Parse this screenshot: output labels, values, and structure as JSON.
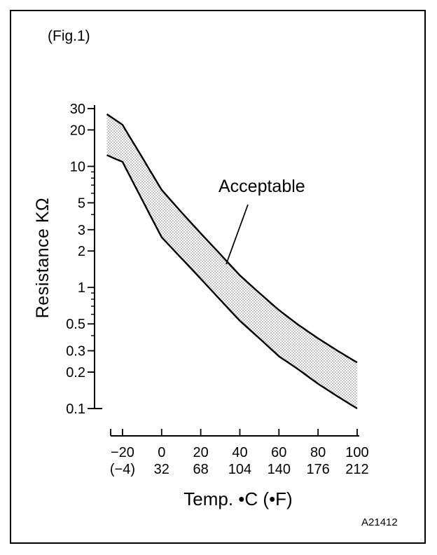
{
  "figure": {
    "fig_label": "(Fig.1)",
    "code": "A21412"
  },
  "chart_data": {
    "type": "area",
    "title": "",
    "ylabel": "Resistance KΩ",
    "xlabel": "Temp. •C (•F)",
    "annotation": "Acceptable",
    "y_scale": "log",
    "ylim": [
      0.1,
      30
    ],
    "xlim": [
      -28,
      100
    ],
    "grid": false,
    "legend": "none",
    "y_ticks": [
      30,
      20,
      10,
      5,
      3,
      2,
      1,
      0.5,
      0.3,
      0.2,
      0.1
    ],
    "x_tick_values": [
      -20,
      0,
      20,
      40,
      60,
      80,
      100
    ],
    "x_tick_labels_celsius": [
      "−20",
      "0",
      "20",
      "40",
      "60",
      "80",
      "100"
    ],
    "x_tick_labels_fahrenheit": [
      "(−4)",
      "32",
      "68",
      "104",
      "140",
      "176",
      "212"
    ],
    "band_fill": "stipple-dots",
    "band_dot_color": "#777777",
    "line_color": "#000000",
    "series": [
      {
        "name": "upper-limit",
        "x": [
          -28,
          -24,
          -20,
          -10,
          0,
          10,
          20,
          30,
          40,
          50,
          60,
          70,
          80,
          90,
          100
        ],
        "y": [
          27,
          24.4,
          22,
          11.9,
          6.4,
          4.2,
          2.8,
          1.88,
          1.26,
          0.9,
          0.65,
          0.49,
          0.38,
          0.3,
          0.24
        ]
      },
      {
        "name": "lower-limit",
        "x": [
          -28,
          -24,
          -20,
          -10,
          0,
          10,
          20,
          30,
          40,
          50,
          60,
          70,
          80,
          90,
          100
        ],
        "y": [
          12.4,
          11.6,
          10.9,
          5.3,
          2.6,
          1.75,
          1.18,
          0.79,
          0.53,
          0.38,
          0.27,
          0.21,
          0.16,
          0.126,
          0.1
        ]
      }
    ]
  }
}
